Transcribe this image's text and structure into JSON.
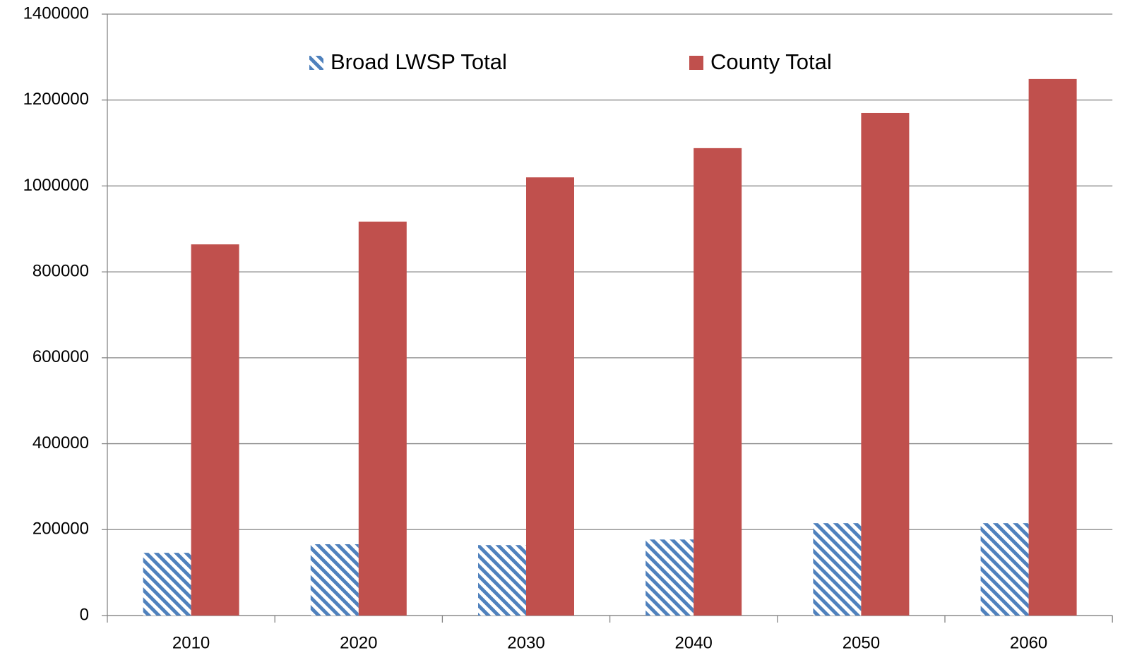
{
  "chart_data": {
    "type": "bar",
    "categories": [
      "2010",
      "2020",
      "2030",
      "2040",
      "2050",
      "2060"
    ],
    "series": [
      {
        "name": "Broad LWSP Total",
        "color": "#4f81bd",
        "hatch": true,
        "values": [
          146000,
          166000,
          164000,
          177000,
          215000,
          215000
        ]
      },
      {
        "name": "County Total",
        "color": "#c0504d",
        "hatch": false,
        "values": [
          864000,
          917000,
          1020000,
          1088000,
          1170000,
          1249000
        ]
      }
    ],
    "ylim": [
      0,
      1400000
    ],
    "yticks": [
      0,
      200000,
      400000,
      600000,
      800000,
      1000000,
      1200000,
      1400000
    ],
    "grid": true,
    "legend": "top"
  }
}
